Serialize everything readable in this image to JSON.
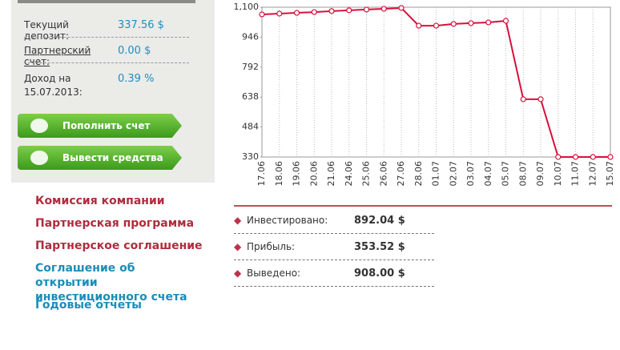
{
  "sidebar": {
    "rows": [
      {
        "label": "Текущий депозит:",
        "value": "337.56 $"
      },
      {
        "label": "Партнерский счет:",
        "value": "0.00 $"
      },
      {
        "label": "Доход на 15.07.2013:",
        "value": "0.39 %"
      }
    ],
    "buttons": [
      "Пополнить счет",
      "Вывести средства"
    ],
    "links": [
      "Комиссия компании",
      "Партнерская программа",
      "Партнерское соглашение",
      "Соглашение об открытии инвестиционного счета",
      "Годовые отчеты"
    ]
  },
  "chart_data": {
    "type": "line",
    "categories": [
      "17.06",
      "18.06",
      "19.06",
      "20.06",
      "21.06",
      "24.06",
      "25.06",
      "26.06",
      "27.06",
      "28.06",
      "01.07",
      "02.07",
      "03.07",
      "04.07",
      "05.07",
      "08.07",
      "09.07",
      "10.07",
      "11.07",
      "12.07",
      "15.07"
    ],
    "values": [
      1063,
      1067,
      1071,
      1075,
      1080,
      1084,
      1088,
      1092,
      1096,
      1005,
      1005,
      1014,
      1018,
      1022,
      1030,
      627,
      627,
      330,
      330,
      330,
      330
    ],
    "color": "#d8103c",
    "ylim": [
      330,
      1100
    ],
    "yticks": [
      330,
      484,
      638,
      792,
      946,
      {
        "value": 1100,
        "label": "1,100"
      }
    ],
    "grid": true
  },
  "stats": {
    "rows": [
      {
        "label": "Инвестировано:",
        "value": "892.04 $"
      },
      {
        "label": "Прибыль:",
        "value": "353.52 $"
      },
      {
        "label": "Выведено:",
        "value": "908.00 $"
      }
    ]
  }
}
